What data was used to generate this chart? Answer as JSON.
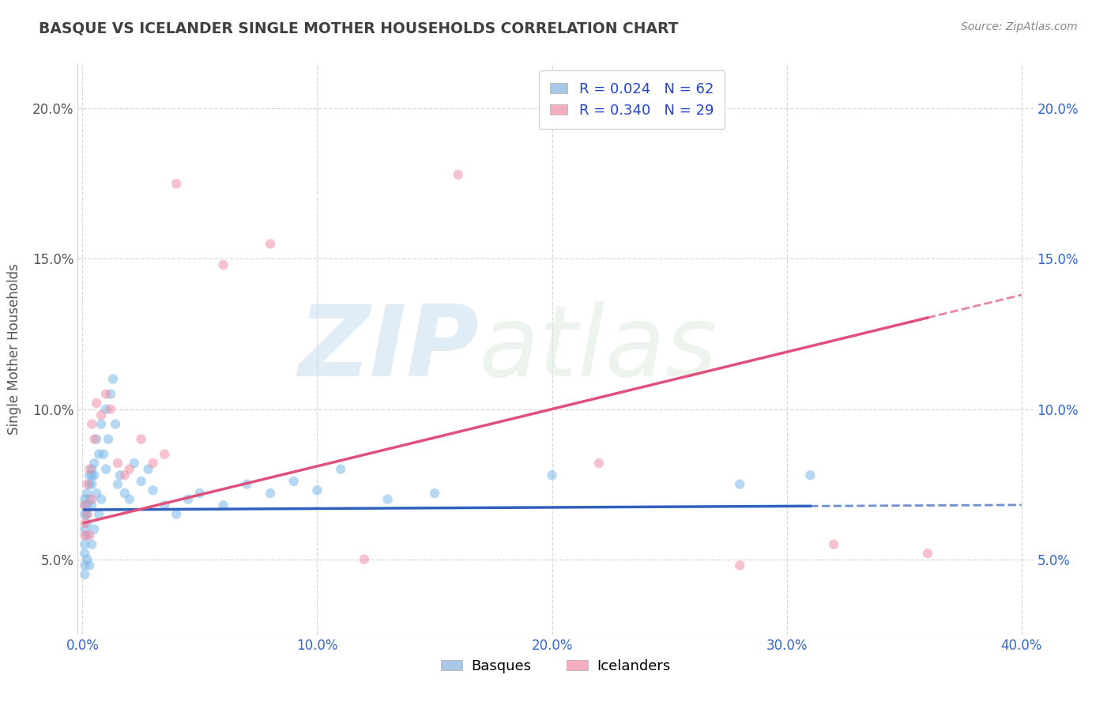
{
  "title": "BASQUE VS ICELANDER SINGLE MOTHER HOUSEHOLDS CORRELATION CHART",
  "source": "Source: ZipAtlas.com",
  "ylabel": "Single Mother Households",
  "xlabel": "",
  "watermark_text": "ZIP",
  "watermark_text2": "atlas",
  "xlim": [
    -0.002,
    0.405
  ],
  "ylim": [
    0.025,
    0.215
  ],
  "xticks": [
    0.0,
    0.1,
    0.2,
    0.3,
    0.4
  ],
  "xtick_labels": [
    "0.0%",
    "10.0%",
    "20.0%",
    "30.0%",
    "40.0%"
  ],
  "yticks": [
    0.05,
    0.1,
    0.15,
    0.2
  ],
  "ytick_labels": [
    "5.0%",
    "10.0%",
    "15.0%",
    "20.0%"
  ],
  "legend_entries": [
    {
      "label": "Basques",
      "color": "#a8c8e8",
      "R": "0.024",
      "N": "62"
    },
    {
      "label": "Icelanders",
      "color": "#f4aec0",
      "R": "0.340",
      "N": "29"
    }
  ],
  "basque_color": "#7ab8e8",
  "icelander_color": "#f090a8",
  "basque_line_color": "#3060c0",
  "icelander_line_color": "#e0507a",
  "grid_color": "#d8d8d8",
  "background_color": "#ffffff",
  "title_color": "#404040",
  "marker_size": 80,
  "marker_alpha": 0.55,
  "basque_x": [
    0.001,
    0.001,
    0.001,
    0.001,
    0.001,
    0.001,
    0.001,
    0.001,
    0.002,
    0.002,
    0.002,
    0.002,
    0.002,
    0.002,
    0.003,
    0.003,
    0.003,
    0.003,
    0.004,
    0.004,
    0.004,
    0.004,
    0.004,
    0.005,
    0.005,
    0.005,
    0.006,
    0.006,
    0.007,
    0.007,
    0.008,
    0.008,
    0.009,
    0.01,
    0.01,
    0.011,
    0.012,
    0.013,
    0.014,
    0.015,
    0.016,
    0.018,
    0.02,
    0.022,
    0.025,
    0.028,
    0.03,
    0.035,
    0.04,
    0.045,
    0.05,
    0.06,
    0.07,
    0.08,
    0.09,
    0.1,
    0.11,
    0.13,
    0.15,
    0.2,
    0.28,
    0.31
  ],
  "basque_y": [
    0.065,
    0.068,
    0.07,
    0.06,
    0.055,
    0.052,
    0.048,
    0.045,
    0.072,
    0.068,
    0.065,
    0.062,
    0.058,
    0.05,
    0.078,
    0.075,
    0.07,
    0.048,
    0.08,
    0.078,
    0.075,
    0.068,
    0.055,
    0.082,
    0.078,
    0.06,
    0.09,
    0.072,
    0.085,
    0.065,
    0.095,
    0.07,
    0.085,
    0.1,
    0.08,
    0.09,
    0.105,
    0.11,
    0.095,
    0.075,
    0.078,
    0.072,
    0.07,
    0.082,
    0.076,
    0.08,
    0.073,
    0.068,
    0.065,
    0.07,
    0.072,
    0.068,
    0.075,
    0.072,
    0.076,
    0.073,
    0.08,
    0.07,
    0.072,
    0.078,
    0.075,
    0.078
  ],
  "icelander_x": [
    0.001,
    0.001,
    0.001,
    0.002,
    0.002,
    0.003,
    0.003,
    0.004,
    0.004,
    0.005,
    0.006,
    0.008,
    0.01,
    0.012,
    0.015,
    0.018,
    0.02,
    0.025,
    0.03,
    0.035,
    0.04,
    0.06,
    0.08,
    0.12,
    0.16,
    0.22,
    0.28,
    0.32,
    0.36
  ],
  "icelander_y": [
    0.068,
    0.062,
    0.058,
    0.075,
    0.065,
    0.08,
    0.058,
    0.095,
    0.07,
    0.09,
    0.102,
    0.098,
    0.105,
    0.1,
    0.082,
    0.078,
    0.08,
    0.09,
    0.082,
    0.085,
    0.175,
    0.148,
    0.155,
    0.05,
    0.178,
    0.082,
    0.048,
    0.055,
    0.052
  ],
  "basque_R": 0.024,
  "basque_intercept": 0.0665,
  "basque_slope": 0.004,
  "icelander_R": 0.34,
  "icelander_intercept": 0.062,
  "icelander_slope": 0.19
}
